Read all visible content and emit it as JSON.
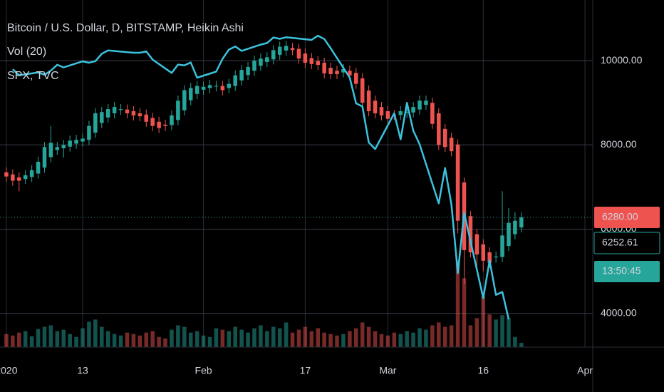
{
  "chart_data": {
    "type": "candlestick",
    "title": "Bitcoin / U.S. Dollar, D, BITSTAMP, Heikin Ashi",
    "up_color": "#26a69a",
    "down_color": "#ef5350",
    "grid": true,
    "x": [
      "2020-01-01",
      "2020-01-02",
      "2020-01-03",
      "2020-01-04",
      "2020-01-05",
      "2020-01-06",
      "2020-01-07",
      "2020-01-08",
      "2020-01-09",
      "2020-01-10",
      "2020-01-11",
      "2020-01-12",
      "2020-01-13",
      "2020-01-14",
      "2020-01-15",
      "2020-01-16",
      "2020-01-17",
      "2020-01-18",
      "2020-01-19",
      "2020-01-20",
      "2020-01-21",
      "2020-01-22",
      "2020-01-23",
      "2020-01-24",
      "2020-01-25",
      "2020-01-26",
      "2020-01-27",
      "2020-01-28",
      "2020-01-29",
      "2020-01-30",
      "2020-01-31",
      "2020-02-01",
      "2020-02-02",
      "2020-02-03",
      "2020-02-04",
      "2020-02-05",
      "2020-02-06",
      "2020-02-07",
      "2020-02-08",
      "2020-02-09",
      "2020-02-10",
      "2020-02-11",
      "2020-02-12",
      "2020-02-13",
      "2020-02-14",
      "2020-02-15",
      "2020-02-16",
      "2020-02-17",
      "2020-02-18",
      "2020-02-19",
      "2020-02-20",
      "2020-02-21",
      "2020-02-22",
      "2020-02-23",
      "2020-02-24",
      "2020-02-25",
      "2020-02-26",
      "2020-02-27",
      "2020-02-28",
      "2020-02-29",
      "2020-03-01",
      "2020-03-02",
      "2020-03-03",
      "2020-03-04",
      "2020-03-05",
      "2020-03-06",
      "2020-03-07",
      "2020-03-08",
      "2020-03-09",
      "2020-03-10",
      "2020-03-11",
      "2020-03-12",
      "2020-03-13",
      "2020-03-14",
      "2020-03-15",
      "2020-03-16",
      "2020-03-17",
      "2020-03-18",
      "2020-03-19",
      "2020-03-20",
      "2020-03-21",
      "2020-03-22"
    ],
    "open": [
      7350,
      7300,
      7230,
      7190,
      7240,
      7320,
      7460,
      7710,
      7880,
      7920,
      7960,
      8030,
      8080,
      8120,
      8290,
      8520,
      8650,
      8750,
      8830,
      8840,
      8800,
      8750,
      8720,
      8640,
      8550,
      8480,
      8470,
      8590,
      8820,
      9060,
      9210,
      9310,
      9350,
      9390,
      9400,
      9350,
      9400,
      9530,
      9660,
      9760,
      9880,
      9970,
      10030,
      10140,
      10240,
      10300,
      10280,
      10170,
      10060,
      9990,
      9950,
      9830,
      9760,
      9720,
      9760,
      9710,
      9580,
      9290,
      9050,
      8900,
      8800,
      8710,
      8710,
      8760,
      8770,
      8840,
      8950,
      9000,
      8750,
      8380,
      8170,
      8010,
      7110,
      6310,
      5880,
      5640,
      5450,
      5330,
      5340,
      5600,
      5880,
      6040
    ],
    "high": [
      7470,
      7420,
      7350,
      7400,
      7520,
      7720,
      8070,
      8450,
      8070,
      8120,
      8220,
      8240,
      8270,
      8570,
      8870,
      8900,
      8970,
      9020,
      8970,
      8960,
      8920,
      8870,
      8840,
      8760,
      8670,
      8600,
      8820,
      9170,
      9420,
      9470,
      9520,
      9500,
      9540,
      9520,
      9520,
      9570,
      9770,
      9900,
      9970,
      10120,
      10170,
      10200,
      10370,
      10450,
      10470,
      10420,
      10400,
      10290,
      10180,
      10110,
      10070,
      9950,
      9880,
      9920,
      9880,
      9830,
      9700,
      9410,
      9170,
      9020,
      8920,
      8830,
      8920,
      8900,
      9020,
      9170,
      9170,
      9120,
      8870,
      8500,
      8290,
      8130,
      7230,
      6430,
      6000,
      5760,
      5570,
      5470,
      6900,
      6500,
      6400,
      6400
    ],
    "low": [
      7130,
      7030,
      6900,
      7070,
      7120,
      7200,
      7340,
      7590,
      7760,
      7700,
      7840,
      7910,
      7960,
      8000,
      8170,
      8400,
      8530,
      8630,
      8710,
      8630,
      8580,
      8560,
      8430,
      8330,
      8280,
      8330,
      8350,
      8470,
      8700,
      8940,
      9090,
      9190,
      9230,
      9270,
      9180,
      9230,
      9280,
      9410,
      9540,
      9640,
      9760,
      9850,
      9910,
      10020,
      10120,
      10130,
      9930,
      9830,
      9800,
      9780,
      9580,
      9560,
      9560,
      9600,
      9530,
      9330,
      8880,
      8680,
      8630,
      8580,
      8500,
      8590,
      8590,
      8640,
      8650,
      8720,
      8830,
      8380,
      7880,
      7830,
      7730,
      5900,
      4700,
      5330,
      5100,
      5000,
      5080,
      5210,
      5220,
      5480,
      5760,
      5920
    ],
    "close": [
      7250,
      7150,
      7150,
      7280,
      7400,
      7600,
      7950,
      8050,
      7950,
      8000,
      8100,
      8120,
      8150,
      8450,
      8750,
      8780,
      8850,
      8900,
      8850,
      8750,
      8700,
      8680,
      8550,
      8450,
      8400,
      8450,
      8700,
      9050,
      9300,
      9350,
      9400,
      9380,
      9420,
      9400,
      9300,
      9450,
      9650,
      9780,
      9850,
      10000,
      10050,
      10080,
      10250,
      10330,
      10350,
      10250,
      10050,
      9950,
      9920,
      9900,
      9700,
      9680,
      9680,
      9800,
      9650,
      9450,
      9000,
      8800,
      8750,
      8700,
      8620,
      8700,
      8800,
      8780,
      8900,
      9050,
      9050,
      8500,
      8000,
      7950,
      7850,
      6200,
      5500,
      5450,
      5400,
      5250,
      5200,
      5350,
      5850,
      6150,
      6200,
      6280
    ],
    "volume": {
      "name": "Vol (20)",
      "values": [
        18,
        16,
        20,
        22,
        15,
        25,
        28,
        30,
        22,
        24,
        18,
        14,
        26,
        35,
        38,
        28,
        22,
        18,
        16,
        20,
        18,
        16,
        20,
        22,
        14,
        12,
        24,
        30,
        28,
        20,
        22,
        16,
        14,
        26,
        24,
        22,
        28,
        24,
        20,
        26,
        30,
        22,
        28,
        26,
        34,
        20,
        24,
        28,
        22,
        26,
        20,
        18,
        16,
        18,
        22,
        26,
        34,
        28,
        22,
        18,
        16,
        20,
        18,
        22,
        20,
        26,
        24,
        30,
        34,
        28,
        30,
        120,
        95,
        30,
        40,
        70,
        45,
        38,
        44,
        40,
        14,
        6
      ]
    },
    "series": [
      {
        "name": "SPX, TVC",
        "color": "#3cc2dd",
        "axis": "y2",
        "x": [
          "2020-01-02",
          "2020-01-03",
          "2020-01-06",
          "2020-01-07",
          "2020-01-08",
          "2020-01-09",
          "2020-01-10",
          "2020-01-13",
          "2020-01-14",
          "2020-01-15",
          "2020-01-16",
          "2020-01-17",
          "2020-01-21",
          "2020-01-22",
          "2020-01-23",
          "2020-01-24",
          "2020-01-27",
          "2020-01-28",
          "2020-01-29",
          "2020-01-30",
          "2020-01-31",
          "2020-02-03",
          "2020-02-04",
          "2020-02-05",
          "2020-02-06",
          "2020-02-07",
          "2020-02-10",
          "2020-02-11",
          "2020-02-12",
          "2020-02-13",
          "2020-02-14",
          "2020-02-18",
          "2020-02-19",
          "2020-02-20",
          "2020-02-21",
          "2020-02-24",
          "2020-02-25",
          "2020-02-26",
          "2020-02-27",
          "2020-02-28",
          "2020-03-02",
          "2020-03-03",
          "2020-03-04",
          "2020-03-05",
          "2020-03-06",
          "2020-03-09",
          "2020-03-10",
          "2020-03-11",
          "2020-03-12",
          "2020-03-13",
          "2020-03-16",
          "2020-03-17",
          "2020-03-18",
          "2020-03-19",
          "2020-03-20"
        ],
        "values": [
          3258,
          3235,
          3246,
          3237,
          3253,
          3275,
          3265,
          3288,
          3283,
          3289,
          3317,
          3330,
          3321,
          3321,
          3326,
          3295,
          3244,
          3276,
          3273,
          3284,
          3226,
          3249,
          3298,
          3333,
          3345,
          3328,
          3352,
          3358,
          3379,
          3374,
          3380,
          3370,
          3386,
          3373,
          3338,
          3226,
          3128,
          3116,
          2979,
          2954,
          3090,
          2991,
          3130,
          3024,
          2972,
          2747,
          2882,
          2741,
          2481,
          2711,
          2386,
          2529,
          2398,
          2409,
          2305
        ]
      }
    ],
    "xlim": [
      "2019-12-31",
      "2020-04-02"
    ],
    "xticks": [
      {
        "value": "2020-01-01",
        "label": "2020"
      },
      {
        "value": "2020-01-13",
        "label": "13"
      },
      {
        "value": "2020-02-01",
        "label": "Feb"
      },
      {
        "value": "2020-02-17",
        "label": "17"
      },
      {
        "value": "2020-03-01",
        "label": "Mar"
      },
      {
        "value": "2020-03-16",
        "label": "16"
      },
      {
        "value": "2020-04-01",
        "label": "Apr"
      }
    ],
    "ylim": [
      3200,
      11440
    ],
    "yticks": [
      {
        "value": 4000,
        "label": "4000.00"
      },
      {
        "value": 6000,
        "label": "6000.00"
      },
      {
        "value": 8000,
        "label": "8000.00"
      },
      {
        "value": 10000,
        "label": "10000.00"
      }
    ],
    "y2lim": [
      2199,
      3522
    ],
    "last_price": {
      "value": 6280,
      "label": "6280.00"
    },
    "close_label": "6252.61",
    "countdown": "13:50:45"
  }
}
